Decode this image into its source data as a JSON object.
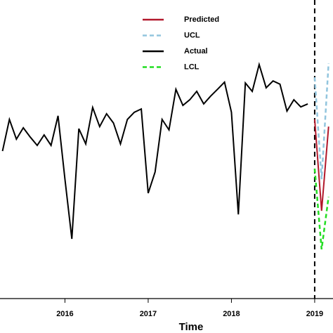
{
  "chart_data": {
    "type": "line",
    "xlabel": "Time",
    "xlim": [
      2015.22,
      2019.22
    ],
    "ylim": [
      0,
      100
    ],
    "xticks": [
      2016,
      2017,
      2018,
      2019
    ],
    "vline": 2019,
    "legend": "top",
    "series": [
      {
        "name": "Predicted",
        "color": "#b2182b",
        "dash": false,
        "x": [
          2019.0,
          2019.083,
          2019.167
        ],
        "values": [
          60.0,
          29.4,
          57.6
        ]
      },
      {
        "name": "UCL",
        "color": "#92c5de",
        "dash": true,
        "x": [
          2019.0,
          2019.083,
          2019.167
        ],
        "values": [
          74.1,
          40.0,
          78.8
        ]
      },
      {
        "name": "Actual",
        "color": "#000000",
        "dash": false,
        "x": [
          2015.25,
          2015.333,
          2015.417,
          2015.5,
          2015.583,
          2015.667,
          2015.75,
          2015.833,
          2015.917,
          2016.0,
          2016.083,
          2016.167,
          2016.25,
          2016.333,
          2016.417,
          2016.5,
          2016.583,
          2016.667,
          2016.75,
          2016.833,
          2016.917,
          2017.0,
          2017.083,
          2017.167,
          2017.25,
          2017.333,
          2017.417,
          2017.5,
          2017.583,
          2017.667,
          2017.75,
          2017.833,
          2017.917,
          2018.0,
          2018.083,
          2018.167,
          2018.25,
          2018.333,
          2018.417,
          2018.5,
          2018.583,
          2018.667,
          2018.75,
          2018.833,
          2018.917
        ],
        "values": [
          49.4,
          60.0,
          53.4,
          57.2,
          54.1,
          51.3,
          54.8,
          51.3,
          61.2,
          40.0,
          20.0,
          56.9,
          51.8,
          64.0,
          57.6,
          61.9,
          58.8,
          51.8,
          60.0,
          62.4,
          63.5,
          35.3,
          42.4,
          60.0,
          56.5,
          70.1,
          64.7,
          66.6,
          69.4,
          65.2,
          67.8,
          70.1,
          72.5,
          62.4,
          28.2,
          72.2,
          69.4,
          78.4,
          70.6,
          72.9,
          71.8,
          62.8,
          66.6,
          64.2,
          65.2
        ]
      },
      {
        "name": "LCL",
        "color": "#22dd22",
        "dash": true,
        "x": [
          2019.0,
          2019.083,
          2019.167
        ],
        "values": [
          43.5,
          16.5,
          34.1
        ]
      }
    ]
  }
}
